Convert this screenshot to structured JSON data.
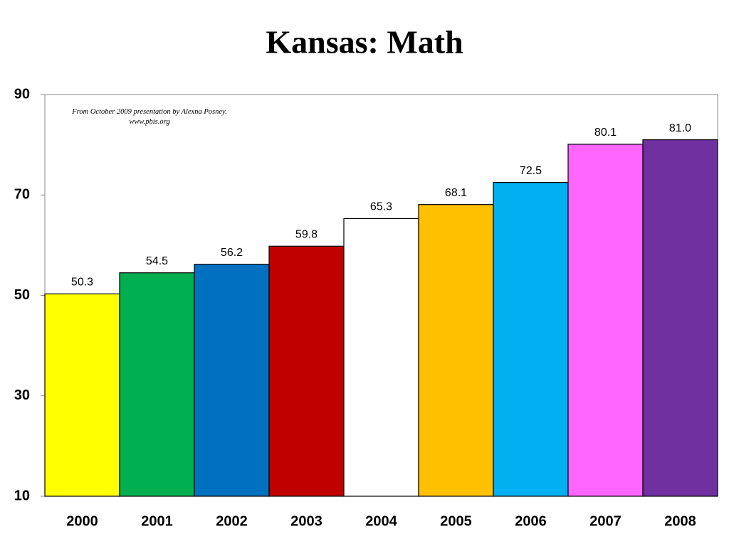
{
  "chart_data": {
    "type": "bar",
    "title": "Kansas: Math",
    "annotation": "From October 2009 presentation by Alexna Posney. www.pbis.org",
    "categories": [
      "2000",
      "2001",
      "2002",
      "2003",
      "2004",
      "2005",
      "2006",
      "2007",
      "2008"
    ],
    "values": [
      50.3,
      54.5,
      56.2,
      59.8,
      65.3,
      68.1,
      72.5,
      80.1,
      81
    ],
    "value_labels": [
      "50.3",
      "54.5",
      "56.2",
      "59.8",
      "65.3",
      "68.1",
      "72.5",
      "80.1",
      "81.0"
    ],
    "colors": [
      "#ffff00",
      "#00b050",
      "#0070c0",
      "#c00000",
      "#ffffff",
      "#ffc000",
      "#00b0f0",
      "#ff66ff",
      "#7030a0"
    ],
    "ylim": [
      10,
      90
    ],
    "yticks": [
      10,
      30,
      50,
      70,
      90
    ],
    "grid": false
  }
}
